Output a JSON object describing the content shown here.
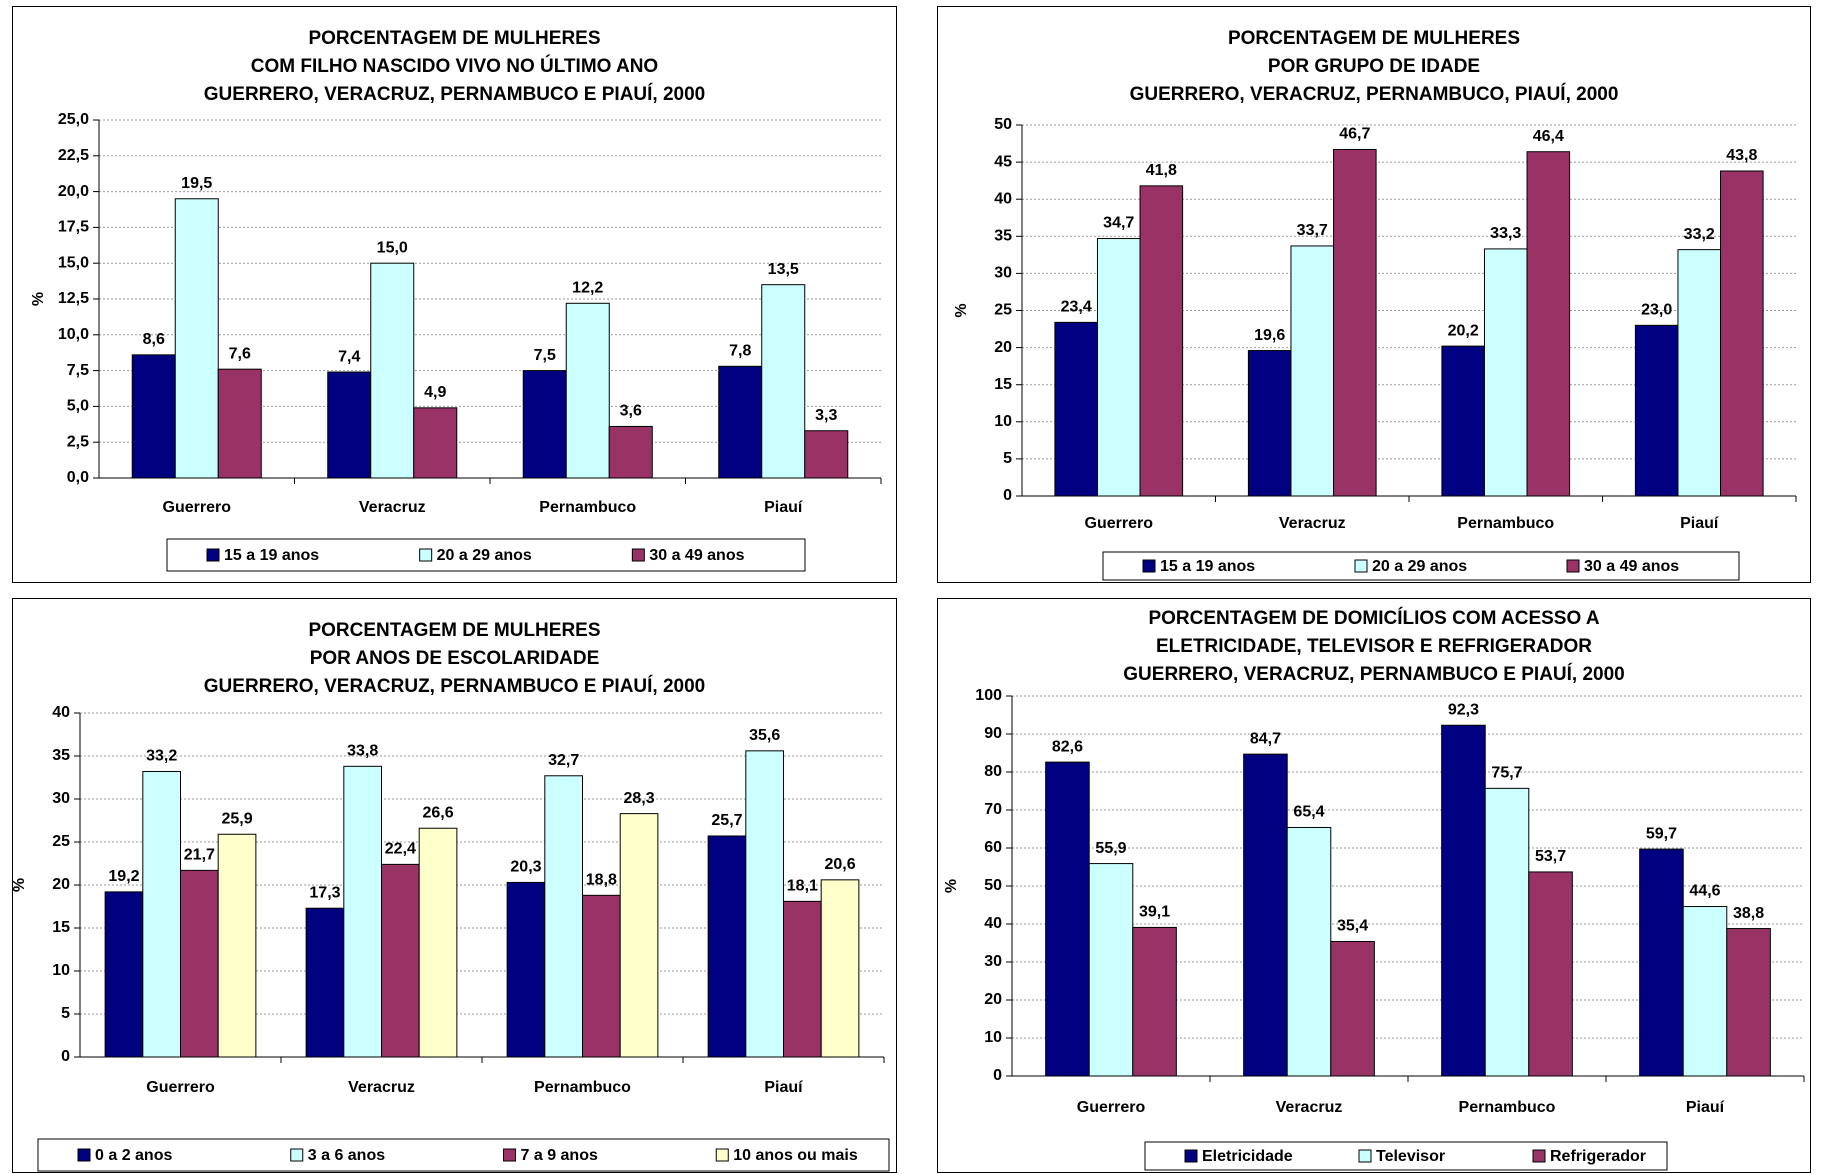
{
  "chart_data": [
    {
      "type": "bar",
      "title": [
        "PORCENTAGEM DE MULHERES",
        "COM FILHO NASCIDO VIVO NO ÚLTIMO ANO",
        "GUERRERO, VERACRUZ, PERNAMBUCO E PIAUÍ, 2000"
      ],
      "y_label": "%",
      "categories": [
        "Guerrero",
        "Veracruz",
        "Pernambuco",
        "Piauí"
      ],
      "series": [
        {
          "name": "15 a 19 anos",
          "color": "#000080",
          "values": [
            8.6,
            7.4,
            7.5,
            7.8
          ],
          "value_labels": [
            "8,6",
            "7,4",
            "7,5",
            "7,8"
          ]
        },
        {
          "name": "20 a 29 anos",
          "color": "#ccffff",
          "values": [
            19.5,
            15.0,
            12.2,
            13.5
          ],
          "value_labels": [
            "19,5",
            "15,0",
            "12,2",
            "13,5"
          ]
        },
        {
          "name": "30 a 49 anos",
          "color": "#993366",
          "values": [
            7.6,
            4.9,
            3.6,
            3.3
          ],
          "value_labels": [
            "7,6",
            "4,9",
            "3,6",
            "3,3"
          ]
        }
      ],
      "ylim": [
        0,
        25
      ],
      "yticks": [
        {
          "value": 0,
          "label": "0,0"
        },
        {
          "value": 2.5,
          "label": "2,5"
        },
        {
          "value": 5,
          "label": "5,0"
        },
        {
          "value": 7.5,
          "label": "7,5"
        },
        {
          "value": 10,
          "label": "10,0"
        },
        {
          "value": 12.5,
          "label": "12,5"
        },
        {
          "value": 15,
          "label": "15,0"
        },
        {
          "value": 17.5,
          "label": "17,5"
        },
        {
          "value": 20,
          "label": "20,0"
        },
        {
          "value": 22.5,
          "label": "22,5"
        },
        {
          "value": 25,
          "label": "25,0"
        }
      ],
      "grid": true,
      "legend": "bottom"
    },
    {
      "type": "bar",
      "title": [
        "PORCENTAGEM DE MULHERES",
        "POR GRUPO DE IDADE",
        "GUERRERO, VERACRUZ, PERNAMBUCO, PIAUÍ, 2000"
      ],
      "y_label": "%",
      "categories": [
        "Guerrero",
        "Veracruz",
        "Pernambuco",
        "Piauí"
      ],
      "series": [
        {
          "name": "15 a 19 anos",
          "color": "#000080",
          "values": [
            23.4,
            19.6,
            20.2,
            23.0
          ],
          "value_labels": [
            "23,4",
            "19,6",
            "20,2",
            "23,0"
          ]
        },
        {
          "name": "20 a 29 anos",
          "color": "#ccffff",
          "values": [
            34.7,
            33.7,
            33.3,
            33.2
          ],
          "value_labels": [
            "34,7",
            "33,7",
            "33,3",
            "33,2"
          ]
        },
        {
          "name": "30 a 49 anos",
          "color": "#993366",
          "values": [
            41.8,
            46.7,
            46.4,
            43.8
          ],
          "value_labels": [
            "41,8",
            "46,7",
            "46,4",
            "43,8"
          ]
        }
      ],
      "ylim": [
        0,
        50
      ],
      "yticks": [
        0,
        5,
        10,
        15,
        20,
        25,
        30,
        35,
        40,
        45,
        50
      ],
      "grid": true,
      "legend": "bottom"
    },
    {
      "type": "bar",
      "title": [
        "PORCENTAGEM DE MULHERES",
        "POR ANOS DE ESCOLARIDADE",
        "GUERRERO, VERACRUZ, PERNAMBUCO E PIAUÍ, 2000"
      ],
      "y_label": "%",
      "categories": [
        "Guerrero",
        "Veracruz",
        "Pernambuco",
        "Piauí"
      ],
      "series": [
        {
          "name": "0 a 2 anos",
          "color": "#000080",
          "values": [
            19.2,
            17.3,
            20.3,
            25.7
          ],
          "value_labels": [
            "19,2",
            "17,3",
            "20,3",
            "25,7"
          ]
        },
        {
          "name": "3 a 6 anos",
          "color": "#ccffff",
          "values": [
            33.2,
            33.8,
            32.7,
            35.6
          ],
          "value_labels": [
            "33,2",
            "33,8",
            "32,7",
            "35,6"
          ]
        },
        {
          "name": "7 a 9 anos",
          "color": "#993366",
          "values": [
            21.7,
            22.4,
            18.8,
            18.1
          ],
          "value_labels": [
            "21,7",
            "22,4",
            "18,8",
            "18,1"
          ]
        },
        {
          "name": "10 anos ou mais",
          "color": "#ffffcc",
          "values": [
            25.9,
            26.6,
            28.3,
            20.6
          ],
          "value_labels": [
            "25,9",
            "26,6",
            "28,3",
            "20,6"
          ]
        }
      ],
      "ylim": [
        0,
        40
      ],
      "yticks": [
        0,
        5,
        10,
        15,
        20,
        25,
        30,
        35,
        40
      ],
      "grid": true,
      "legend": "bottom"
    },
    {
      "type": "bar",
      "title": [
        "PORCENTAGEM DE DOMICÍLIOS COM ACESSO A",
        "ELETRICIDADE, TELEVISOR E REFRIGERADOR",
        "GUERRERO, VERACRUZ, PERNAMBUCO E PIAUÍ, 2000"
      ],
      "y_label": "%",
      "categories": [
        "Guerrero",
        "Veracruz",
        "Pernambuco",
        "Piauí"
      ],
      "series": [
        {
          "name": "Eletricidade",
          "color": "#000080",
          "values": [
            82.6,
            84.7,
            92.3,
            59.7
          ],
          "value_labels": [
            "82,6",
            "84,7",
            "92,3",
            "59,7"
          ]
        },
        {
          "name": "Televisor",
          "color": "#ccffff",
          "values": [
            55.9,
            65.4,
            75.7,
            44.6
          ],
          "value_labels": [
            "55,9",
            "65,4",
            "75,7",
            "44,6"
          ]
        },
        {
          "name": "Refrigerador",
          "color": "#993366",
          "values": [
            39.1,
            35.4,
            53.7,
            38.8
          ],
          "value_labels": [
            "39,1",
            "35,4",
            "53,7",
            "38,8"
          ]
        }
      ],
      "ylim": [
        0,
        100
      ],
      "yticks": [
        0,
        10,
        20,
        30,
        40,
        50,
        60,
        70,
        80,
        90,
        100
      ],
      "grid": true,
      "legend": "bottom"
    }
  ]
}
